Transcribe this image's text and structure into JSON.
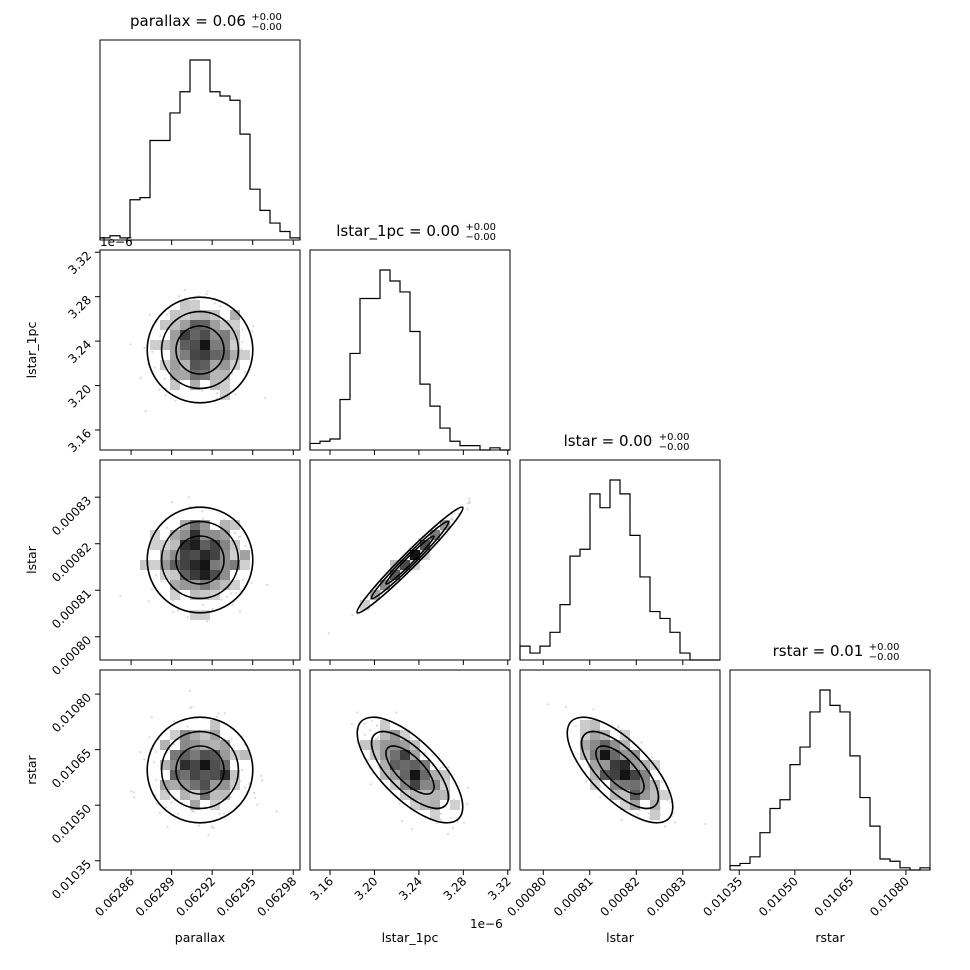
{
  "chart_data": {
    "type": "corner",
    "parameters": [
      "parallax",
      "lstar_1pc",
      "lstar",
      "rstar"
    ],
    "titles": [
      {
        "param": "parallax",
        "value": "0.06",
        "plus": "+0.00",
        "minus": "−0.00"
      },
      {
        "param": "lstar_1pc",
        "value": "0.00",
        "plus": "+0.00",
        "minus": "−0.00"
      },
      {
        "param": "lstar",
        "value": "0.00",
        "plus": "+0.00",
        "minus": "−0.00"
      },
      {
        "param": "rstar",
        "value": "0.01",
        "plus": "+0.00",
        "minus": "−0.00"
      }
    ],
    "axes": {
      "parallax": {
        "range": [
          0.062837,
          0.062985
        ],
        "ticks": [
          "0.06286",
          "0.06289",
          "0.06292",
          "0.06295",
          "0.06298"
        ],
        "tick_values": [
          0.06286,
          0.06289,
          0.06292,
          0.06295,
          0.06298
        ]
      },
      "lstar_1pc": {
        "range": [
          3.142,
          3.322
        ],
        "ticks": [
          "3.16",
          "3.20",
          "3.24",
          "3.28",
          "3.32"
        ],
        "tick_values": [
          3.16,
          3.2,
          3.24,
          3.28,
          3.32
        ],
        "offset_text": "1e−6"
      },
      "lstar": {
        "range": [
          0.000795,
          0.000838
        ],
        "ticks": [
          "0.00080",
          "0.00081",
          "0.00082",
          "0.00083"
        ],
        "tick_values": [
          0.0008,
          0.00081,
          0.00082,
          0.00083
        ]
      },
      "rstar": {
        "range": [
          0.010325,
          0.010865
        ],
        "ticks": [
          "0.01035",
          "0.01050",
          "0.01065",
          "0.01080"
        ],
        "tick_values": [
          0.01035,
          0.0105,
          0.01065,
          0.0108
        ]
      }
    },
    "histograms": [
      {
        "param": "parallax",
        "edges": [
          0.062837,
          0.062985
        ],
        "counts": [
          1,
          2,
          1,
          19,
          20,
          47,
          47,
          60,
          70,
          85,
          85,
          70,
          68,
          66,
          50,
          24,
          14,
          8,
          4,
          1
        ]
      },
      {
        "param": "lstar_1pc",
        "edges": [
          3.142,
          3.322
        ],
        "counts": [
          3,
          4,
          5,
          23,
          44,
          69,
          69,
          82,
          77,
          72,
          54,
          30,
          20,
          10,
          4,
          2,
          2,
          0,
          1,
          0
        ]
      },
      {
        "param": "lstar",
        "edges": [
          0.000795,
          0.000838
        ],
        "counts": [
          2,
          1,
          2,
          4,
          8,
          15,
          16,
          24,
          22,
          26,
          24,
          18,
          12,
          7,
          6,
          4,
          1,
          0,
          0,
          0
        ]
      },
      {
        "param": "rstar",
        "edges": [
          0.010325,
          0.010865
        ],
        "counts": [
          2,
          3,
          6,
          17,
          28,
          32,
          48,
          56,
          72,
          82,
          75,
          72,
          52,
          33,
          20,
          5,
          4,
          1,
          0,
          1
        ]
      }
    ],
    "pairs": [
      {
        "x": "parallax",
        "y": "lstar_1pc",
        "rho": 0.0
      },
      {
        "x": "parallax",
        "y": "lstar",
        "rho": 0.0
      },
      {
        "x": "lstar_1pc",
        "y": "lstar",
        "rho": 0.99
      },
      {
        "x": "parallax",
        "y": "rstar",
        "rho": 0.0
      },
      {
        "x": "lstar_1pc",
        "y": "rstar",
        "rho": -0.7
      },
      {
        "x": "lstar",
        "y": "rstar",
        "rho": -0.7
      }
    ]
  }
}
